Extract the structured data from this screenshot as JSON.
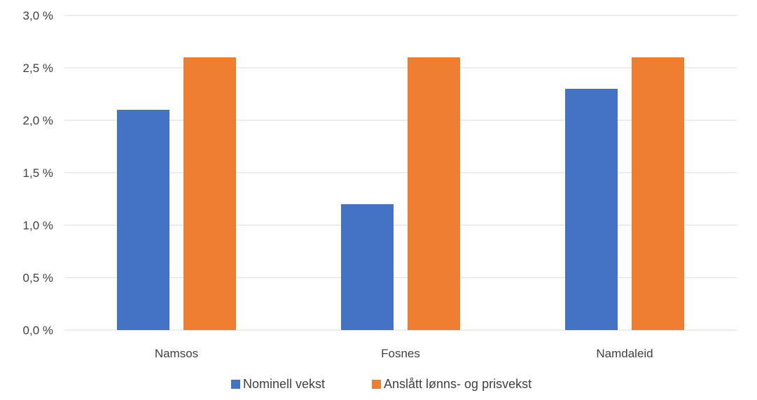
{
  "chart_data": {
    "type": "bar",
    "categories": [
      "Namsos",
      "Fosnes",
      "Namdaleid"
    ],
    "series": [
      {
        "name": "Nominell vekst",
        "values": [
          2.1,
          1.2,
          2.3
        ],
        "color": "#4472C4"
      },
      {
        "name": "Anslått lønns- og prisvekst",
        "values": [
          2.6,
          2.6,
          2.6
        ],
        "color": "#ED7D31"
      }
    ],
    "ylim": [
      0,
      3.0
    ],
    "yticks": [
      0.0,
      0.5,
      1.0,
      1.5,
      2.0,
      2.5,
      3.0
    ],
    "ytick_labels": [
      "0,0 %",
      "0,5 %",
      "1,0 %",
      "1,5 %",
      "2,0 %",
      "2,5 %",
      "3,0 %"
    ],
    "grid": true,
    "legend_position": "bottom",
    "title": "",
    "xlabel": "",
    "ylabel": ""
  },
  "colors": {
    "gridline": "#D9D9D9",
    "text": "#404040"
  }
}
